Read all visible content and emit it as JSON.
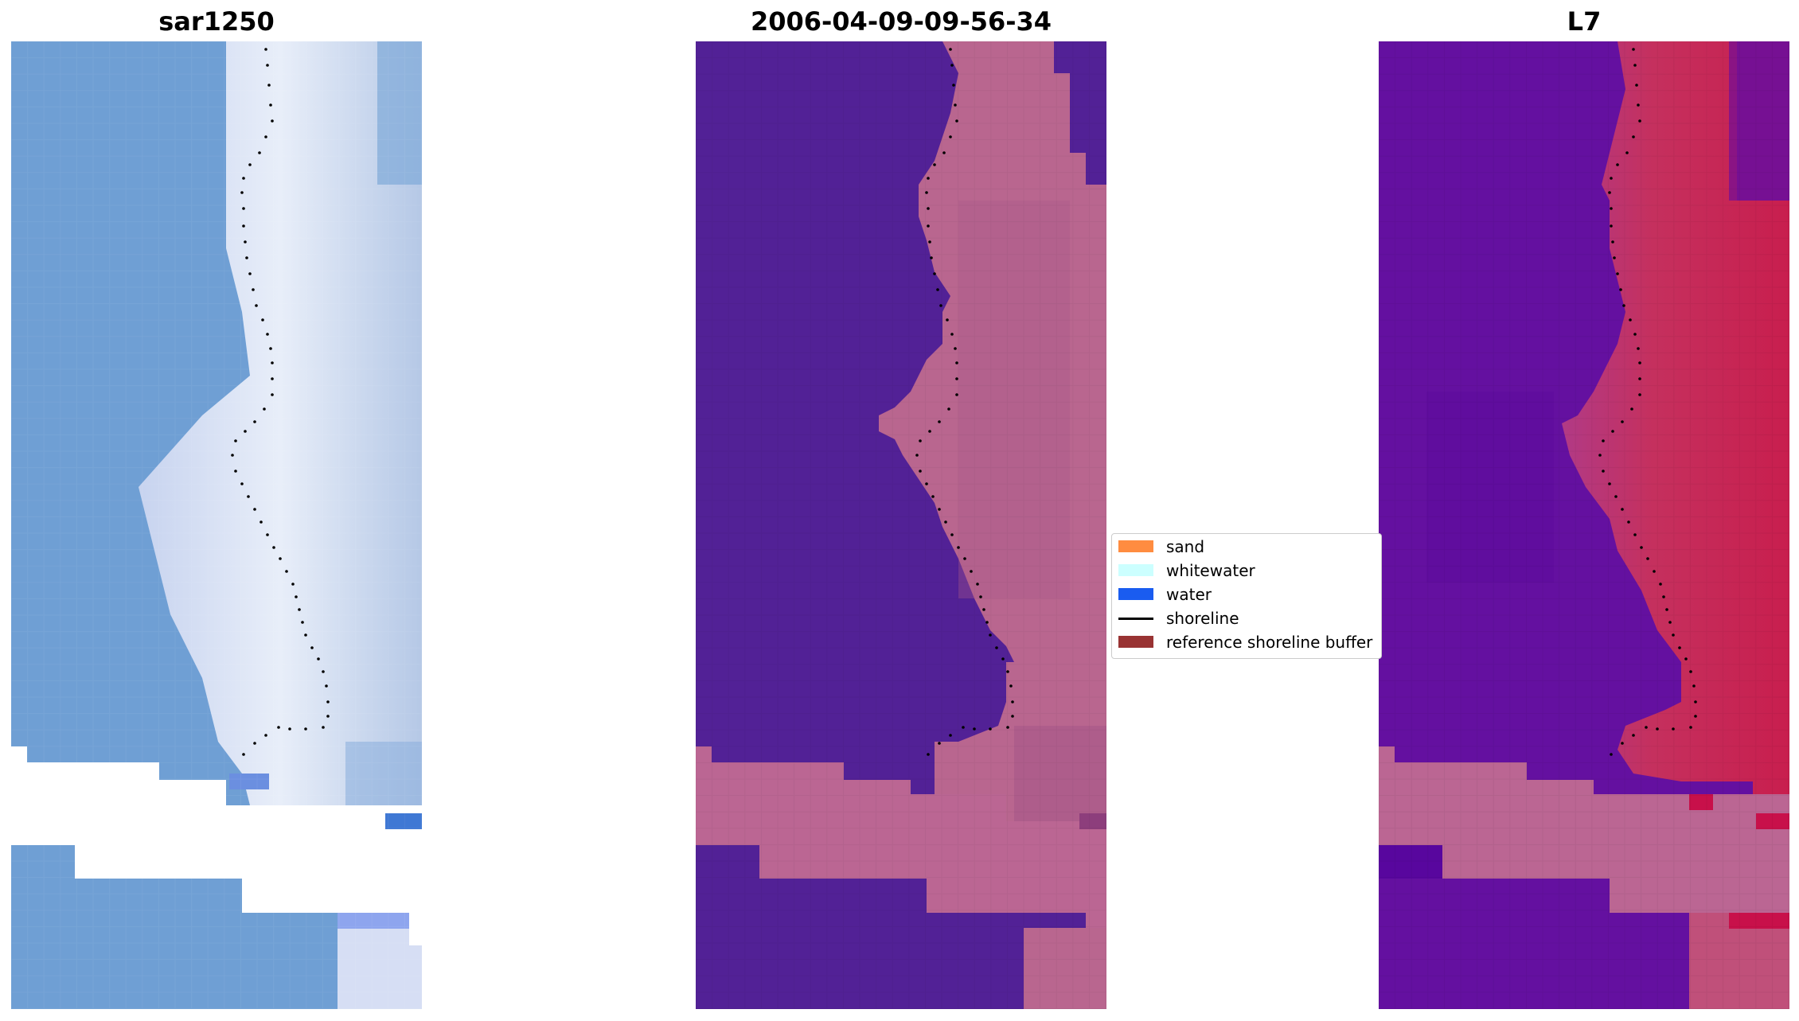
{
  "panels": [
    {
      "id": "rgb",
      "title": "sar1250"
    },
    {
      "id": "classified",
      "title": "2006-04-09-09-56-34"
    },
    {
      "id": "index",
      "title": "L7"
    }
  ],
  "legend": {
    "items": [
      {
        "label": "sand",
        "color": "#ff8c40",
        "kind": "patch"
      },
      {
        "label": "whitewater",
        "color": "#ccffff",
        "kind": "patch"
      },
      {
        "label": "water",
        "color": "#1a5cf0",
        "kind": "patch"
      },
      {
        "label": "shoreline",
        "color": "#000000",
        "kind": "line"
      },
      {
        "label": "reference shoreline buffer",
        "color": "#993333",
        "kind": "patch"
      }
    ]
  },
  "colors": {
    "rgb_water": "#6f9fd4",
    "rgb_surf": "#dfe6f5",
    "classified_water": "#522196",
    "classified_land": "#b9668f",
    "index_water": "#6410a0",
    "index_land": "#c41f5c",
    "buffer_band": "#bb6693",
    "shoreline_dots": "#000000"
  }
}
